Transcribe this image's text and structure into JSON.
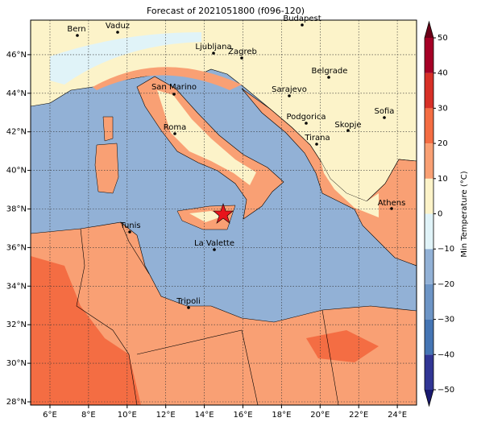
{
  "title": "Forecast of 2021051800 (f096-120)",
  "x_labels": [
    "6°E",
    "8°E",
    "10°E",
    "12°E",
    "14°E",
    "16°E",
    "18°E",
    "20°E",
    "22°E",
    "24°E"
  ],
  "y_labels": [
    "28°N",
    "30°N",
    "32°N",
    "34°N",
    "36°N",
    "38°N",
    "40°N",
    "42°N",
    "44°N",
    "46°N"
  ],
  "cities": [
    "Bern",
    "Vaduz",
    "Budapest",
    "Ljubljana",
    "Zagreb",
    "Belgrade",
    "San Marino",
    "Sarajevo",
    "Sofia",
    "Podgorica",
    "Skopje",
    "Roma",
    "Tirana",
    "Athens",
    "Tunis",
    "La Valette",
    "Tripoli"
  ],
  "colorbar": {
    "label": "Min Temperature (°C)",
    "ticks": [
      {
        "value": -50,
        "label": "−50"
      },
      {
        "value": -40,
        "label": "−40"
      },
      {
        "value": -30,
        "label": "−30"
      },
      {
        "value": -20,
        "label": "−20"
      },
      {
        "value": -10,
        "label": "−10"
      },
      0,
      10,
      20,
      30,
      40,
      50
    ],
    "colors": [
      "#313695",
      "#4575b4",
      "#6d95c6",
      "#92b1d6",
      "#e0f3f8",
      "#fcf3c9",
      "#f9a074",
      "#f46d43",
      "#d73027",
      "#a50026"
    ],
    "under": "#1a1a70",
    "over": "#6b0018"
  }
}
